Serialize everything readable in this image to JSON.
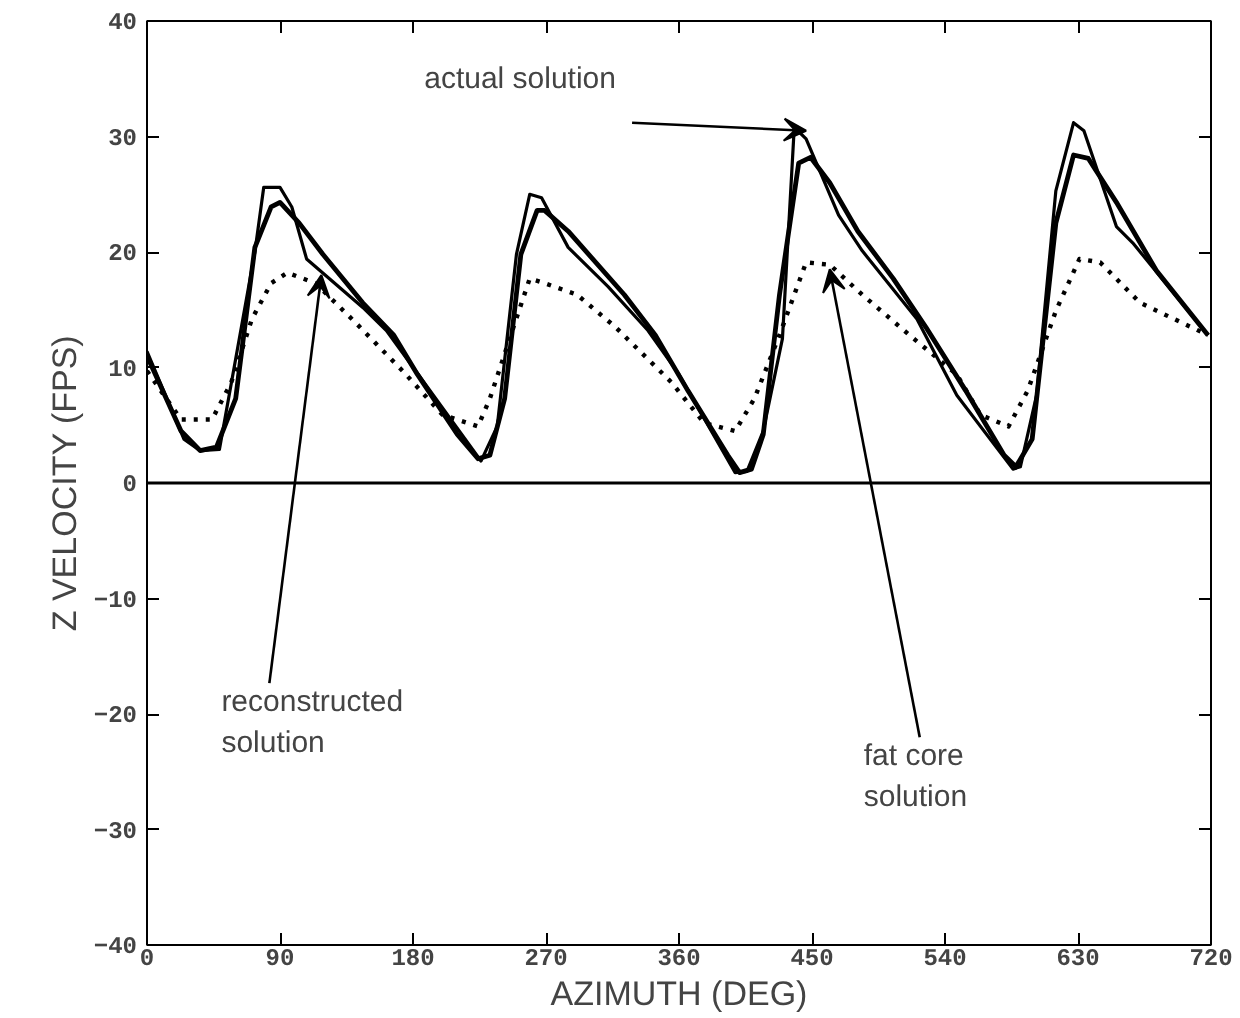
{
  "chart_data": {
    "type": "line",
    "xlabel": "AZIMUTH (DEG)",
    "ylabel": "Z VELOCITY (FPS)",
    "xlim": [
      0,
      720
    ],
    "xticks": [
      0,
      90,
      180,
      270,
      360,
      450,
      540,
      630,
      720
    ],
    "ylim": [
      -40,
      40
    ],
    "yticks": [
      -40,
      -30,
      -20,
      -10,
      0,
      10,
      20,
      30,
      40
    ],
    "grid": false,
    "marker": "none",
    "series": [
      {
        "color": "#000000",
        "line_style": "solid",
        "x": [
          0,
          25,
          36,
          49,
          73,
          79,
          90,
          98,
          108,
          146,
          162,
          226,
          237,
          250,
          259,
          267,
          285,
          312,
          339,
          360,
          398,
          406,
          417,
          430,
          438,
          446,
          468,
          484,
          521,
          548,
          586,
          591,
          602,
          615,
          627,
          634,
          656,
          667,
          718
        ],
        "values": [
          11.4,
          3.8,
          2.8,
          2.9,
          20,
          25.6,
          25.6,
          23.9,
          19.4,
          15.2,
          13.2,
          1.9,
          4.9,
          19.8,
          25,
          24.7,
          20.4,
          17,
          13.2,
          9.4,
          0.9,
          1,
          4.5,
          12.5,
          30.8,
          29.8,
          23.2,
          20.1,
          14.2,
          7.6,
          1.2,
          1.4,
          7.6,
          25.3,
          31.2,
          30.5,
          22.2,
          20.8,
          12.8
        ]
      },
      {
        "color": "#000000",
        "line_style": "solid",
        "x": [
          0,
          23,
          36,
          47,
          60,
          73,
          84,
          90,
          103,
          119,
          146,
          167,
          183,
          210,
          224,
          232,
          242,
          253,
          264,
          269,
          285,
          323,
          344,
          366,
          393,
          401,
          409,
          417,
          428,
          441,
          449,
          462,
          481,
          505,
          527,
          554,
          580,
          588,
          599,
          615,
          627,
          637,
          656,
          683,
          718
        ],
        "values": [
          11,
          4.5,
          2.8,
          3.1,
          7.3,
          20.4,
          23.9,
          24.3,
          22.5,
          19.8,
          15.6,
          12.8,
          9.4,
          4.2,
          2.1,
          2.4,
          7.3,
          19.8,
          23.6,
          23.6,
          21.8,
          16.3,
          12.8,
          8,
          2.4,
          0.9,
          1.2,
          4.2,
          16.3,
          27.7,
          28.2,
          26,
          21.8,
          17.7,
          13.5,
          8,
          2.4,
          1.4,
          3.8,
          22.5,
          28.4,
          28.1,
          24.3,
          18.4,
          12.8
        ]
      },
      {
        "color": "#000000",
        "line_style": "dotted",
        "x": [
          0,
          23,
          44,
          57,
          71,
          84,
          95,
          114,
          141,
          173,
          200,
          224,
          232,
          248,
          259,
          269,
          291,
          317,
          355,
          377,
          398,
          411,
          428,
          446,
          462,
          484,
          516,
          548,
          564,
          583,
          596,
          615,
          631,
          645,
          672,
          718
        ],
        "values": [
          9.7,
          5.5,
          5.5,
          8.7,
          14.2,
          17.3,
          18.2,
          17.3,
          13.9,
          9.7,
          5.9,
          4.9,
          7.3,
          13.5,
          17.7,
          17.3,
          16.3,
          13.5,
          8.7,
          5.2,
          4.5,
          7.3,
          12.8,
          19.1,
          18.9,
          16.3,
          12.8,
          9.4,
          5.9,
          4.9,
          8,
          14.9,
          19.4,
          19.1,
          15.6,
          12.8
        ]
      }
    ],
    "ref_lines": [
      {
        "axis": "y",
        "value": 0,
        "color": "#000000"
      }
    ],
    "annotations": [
      {
        "text": "actual solution",
        "x": 446,
        "y": 30.5
      },
      {
        "text": "reconstructed\nsolution",
        "x": 118,
        "y": 18
      },
      {
        "text": "fat core\nsolution",
        "x": 462,
        "y": 18.5
      }
    ]
  }
}
